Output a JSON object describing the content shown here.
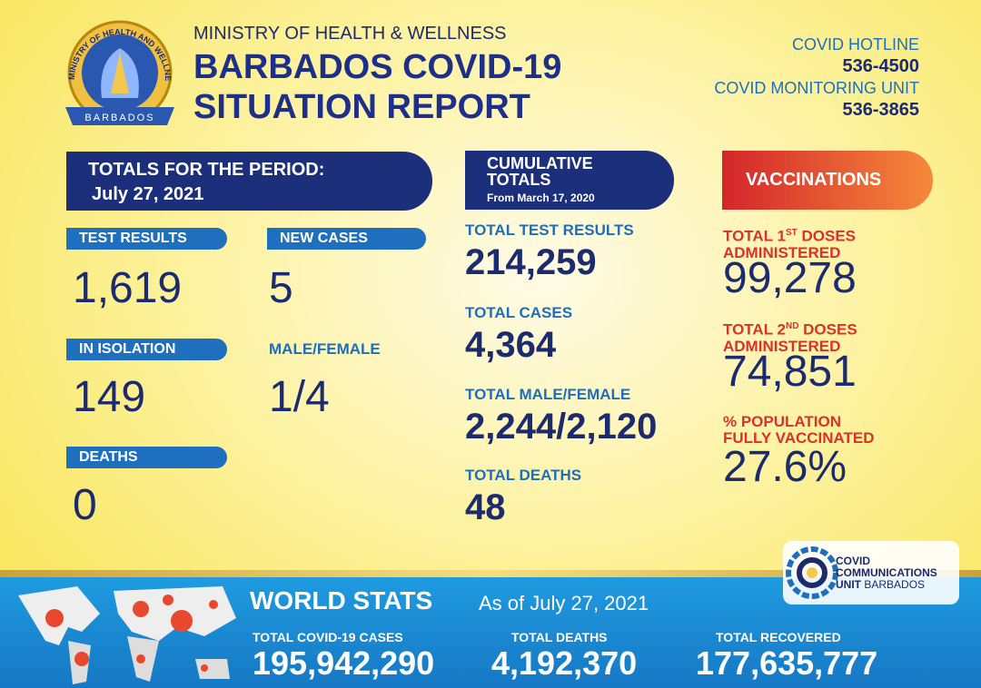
{
  "logo": {
    "ring": "MINISTRY OF HEALTH AND WELLNESS",
    "banner": "BARBADOS"
  },
  "header": {
    "ministry": "MINISTRY OF HEALTH & WELLNESS",
    "title_line1": "BARBADOS COVID-19",
    "title_line2": "SITUATION REPORT"
  },
  "contacts": [
    {
      "label": "COVID HOTLINE",
      "number": "536-4500"
    },
    {
      "label": "COVID MONITORING UNIT",
      "number": "536-3865"
    }
  ],
  "period": {
    "heading": "TOTALS FOR THE PERIOD:",
    "date": "July 27, 2021",
    "stats": [
      {
        "label": "TEST RESULTS",
        "value": "1,619"
      },
      {
        "label": "NEW CASES",
        "value": "5"
      },
      {
        "label": "IN ISOLATION",
        "value": "149"
      },
      {
        "label": "MALE/FEMALE",
        "value": "1/4"
      },
      {
        "label": "DEATHS",
        "value": "0"
      }
    ]
  },
  "cumulative": {
    "heading_line1": "CUMULATIVE",
    "heading_line2": "TOTALS",
    "subheading": "From March 17, 2020",
    "stats": [
      {
        "label": "TOTAL TEST RESULTS",
        "value": "214,259"
      },
      {
        "label": "TOTAL CASES",
        "value": "4,364"
      },
      {
        "label": "TOTAL MALE/FEMALE",
        "value": "2,244/2,120"
      },
      {
        "label": "TOTAL DEATHS",
        "value": "48"
      }
    ]
  },
  "vaccinations": {
    "heading": "VACCINATIONS",
    "stats": [
      {
        "label_pre": "TOTAL 1",
        "label_sup": "ST",
        "label_post": "DOSES",
        "label_line2": "ADMINISTERED",
        "value": "99,278"
      },
      {
        "label_pre": "TOTAL 2",
        "label_sup": "ND",
        "label_post": "DOSES",
        "label_line2": "ADMINISTERED",
        "value": "74,851"
      },
      {
        "label_pre": "% POPULATION",
        "label_line2": "FULLY VACCINATED",
        "value": "27.6%"
      }
    ]
  },
  "comms_logo": {
    "line1": "COVID",
    "line2": "COMMUNICATIONS",
    "line3": "UNIT",
    "line3b": "BARBADOS"
  },
  "world": {
    "heading": "WORLD STATS",
    "as_of": "As of July 27, 2021",
    "stats": [
      {
        "label": "TOTAL COVID-19 CASES",
        "value": "195,942,290"
      },
      {
        "label": "TOTAL DEATHS",
        "value": "4,192,370"
      },
      {
        "label": "TOTAL RECOVERED",
        "value": "177,635,777"
      }
    ]
  }
}
